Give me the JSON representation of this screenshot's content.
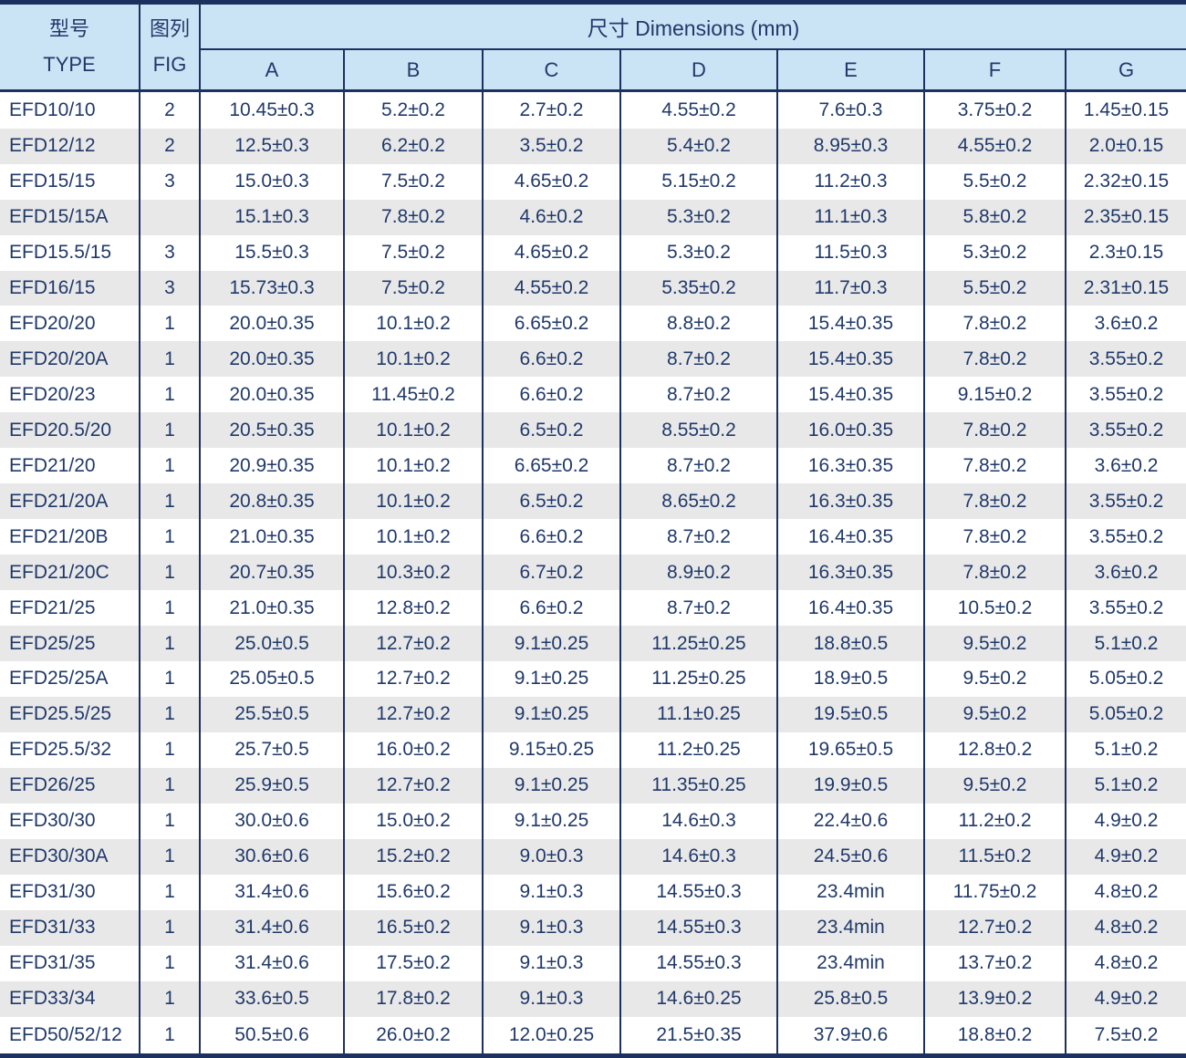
{
  "table": {
    "header": {
      "type_col": {
        "zh": "型号",
        "en": "TYPE"
      },
      "fig_col": {
        "zh": "图列",
        "en": "FIG"
      },
      "dims_title": "尺寸 Dimensions (mm)",
      "dim_cols": [
        "A",
        "B",
        "C",
        "D",
        "E",
        "F",
        "G"
      ]
    },
    "rows": [
      [
        "EFD10/10",
        "2",
        "10.45±0.3",
        "5.2±0.2",
        "2.7±0.2",
        "4.55±0.2",
        "7.6±0.3",
        "3.75±0.2",
        "1.45±0.15"
      ],
      [
        "EFD12/12",
        "2",
        "12.5±0.3",
        "6.2±0.2",
        "3.5±0.2",
        "5.4±0.2",
        "8.95±0.3",
        "4.55±0.2",
        "2.0±0.15"
      ],
      [
        "EFD15/15",
        "3",
        "15.0±0.3",
        "7.5±0.2",
        "4.65±0.2",
        "5.15±0.2",
        "11.2±0.3",
        "5.5±0.2",
        "2.32±0.15"
      ],
      [
        "EFD15/15A",
        "",
        "15.1±0.3",
        "7.8±0.2",
        "4.6±0.2",
        "5.3±0.2",
        "11.1±0.3",
        "5.8±0.2",
        "2.35±0.15"
      ],
      [
        "EFD15.5/15",
        "3",
        "15.5±0.3",
        "7.5±0.2",
        "4.65±0.2",
        "5.3±0.2",
        "11.5±0.3",
        "5.3±0.2",
        "2.3±0.15"
      ],
      [
        "EFD16/15",
        "3",
        "15.73±0.3",
        "7.5±0.2",
        "4.55±0.2",
        "5.35±0.2",
        "11.7±0.3",
        "5.5±0.2",
        "2.31±0.15"
      ],
      [
        "EFD20/20",
        "1",
        "20.0±0.35",
        "10.1±0.2",
        "6.65±0.2",
        "8.8±0.2",
        "15.4±0.35",
        "7.8±0.2",
        "3.6±0.2"
      ],
      [
        "EFD20/20A",
        "1",
        "20.0±0.35",
        "10.1±0.2",
        "6.6±0.2",
        "8.7±0.2",
        "15.4±0.35",
        "7.8±0.2",
        "3.55±0.2"
      ],
      [
        "EFD20/23",
        "1",
        "20.0±0.35",
        "11.45±0.2",
        "6.6±0.2",
        "8.7±0.2",
        "15.4±0.35",
        "9.15±0.2",
        "3.55±0.2"
      ],
      [
        "EFD20.5/20",
        "1",
        "20.5±0.35",
        "10.1±0.2",
        "6.5±0.2",
        "8.55±0.2",
        "16.0±0.35",
        "7.8±0.2",
        "3.55±0.2"
      ],
      [
        "EFD21/20",
        "1",
        "20.9±0.35",
        "10.1±0.2",
        "6.65±0.2",
        "8.7±0.2",
        "16.3±0.35",
        "7.8±0.2",
        "3.6±0.2"
      ],
      [
        "EFD21/20A",
        "1",
        "20.8±0.35",
        "10.1±0.2",
        "6.5±0.2",
        "8.65±0.2",
        "16.3±0.35",
        "7.8±0.2",
        "3.55±0.2"
      ],
      [
        "EFD21/20B",
        "1",
        "21.0±0.35",
        "10.1±0.2",
        "6.6±0.2",
        "8.7±0.2",
        "16.4±0.35",
        "7.8±0.2",
        "3.55±0.2"
      ],
      [
        "EFD21/20C",
        "1",
        "20.7±0.35",
        "10.3±0.2",
        "6.7±0.2",
        "8.9±0.2",
        "16.3±0.35",
        "7.8±0.2",
        "3.6±0.2"
      ],
      [
        "EFD21/25",
        "1",
        "21.0±0.35",
        "12.8±0.2",
        "6.6±0.2",
        "8.7±0.2",
        "16.4±0.35",
        "10.5±0.2",
        "3.55±0.2"
      ],
      [
        "EFD25/25",
        "1",
        "25.0±0.5",
        "12.7±0.2",
        "9.1±0.25",
        "11.25±0.25",
        "18.8±0.5",
        "9.5±0.2",
        "5.1±0.2"
      ],
      [
        "EFD25/25A",
        "1",
        "25.05±0.5",
        "12.7±0.2",
        "9.1±0.25",
        "11.25±0.25",
        "18.9±0.5",
        "9.5±0.2",
        "5.05±0.2"
      ],
      [
        "EFD25.5/25",
        "1",
        "25.5±0.5",
        "12.7±0.2",
        "9.1±0.25",
        "11.1±0.25",
        "19.5±0.5",
        "9.5±0.2",
        "5.05±0.2"
      ],
      [
        "EFD25.5/32",
        "1",
        "25.7±0.5",
        "16.0±0.2",
        "9.15±0.25",
        "11.2±0.25",
        "19.65±0.5",
        "12.8±0.2",
        "5.1±0.2"
      ],
      [
        "EFD26/25",
        "1",
        "25.9±0.5",
        "12.7±0.2",
        "9.1±0.25",
        "11.35±0.25",
        "19.9±0.5",
        "9.5±0.2",
        "5.1±0.2"
      ],
      [
        "EFD30/30",
        "1",
        "30.0±0.6",
        "15.0±0.2",
        "9.1±0.25",
        "14.6±0.3",
        "22.4±0.6",
        "11.2±0.2",
        "4.9±0.2"
      ],
      [
        "EFD30/30A",
        "1",
        "30.6±0.6",
        "15.2±0.2",
        "9.0±0.3",
        "14.6±0.3",
        "24.5±0.6",
        "11.5±0.2",
        "4.9±0.2"
      ],
      [
        "EFD31/30",
        "1",
        "31.4±0.6",
        "15.6±0.2",
        "9.1±0.3",
        "14.55±0.3",
        "23.4min",
        "11.75±0.2",
        "4.8±0.2"
      ],
      [
        "EFD31/33",
        "1",
        "31.4±0.6",
        "16.5±0.2",
        "9.1±0.3",
        "14.55±0.3",
        "23.4min",
        "12.7±0.2",
        "4.8±0.2"
      ],
      [
        "EFD31/35",
        "1",
        "31.4±0.6",
        "17.5±0.2",
        "9.1±0.3",
        "14.55±0.3",
        "23.4min",
        "13.7±0.2",
        "4.8±0.2"
      ],
      [
        "EFD33/34",
        "1",
        "33.6±0.5",
        "17.8±0.2",
        "9.1±0.3",
        "14.6±0.25",
        "25.8±0.5",
        "13.9±0.2",
        "4.9±0.2"
      ],
      [
        "EFD50/52/12",
        "1",
        "50.5±0.6",
        "26.0±0.2",
        "12.0±0.25",
        "21.5±0.35",
        "37.9±0.6",
        "18.8±0.2",
        "7.5±0.2"
      ]
    ]
  },
  "colors": {
    "border_navy": "#1c3160",
    "text_navy": "#20396a",
    "header_blue": "#cbe4f5",
    "stripe_gray": "#e8e8e8",
    "row_white": "#ffffff"
  }
}
